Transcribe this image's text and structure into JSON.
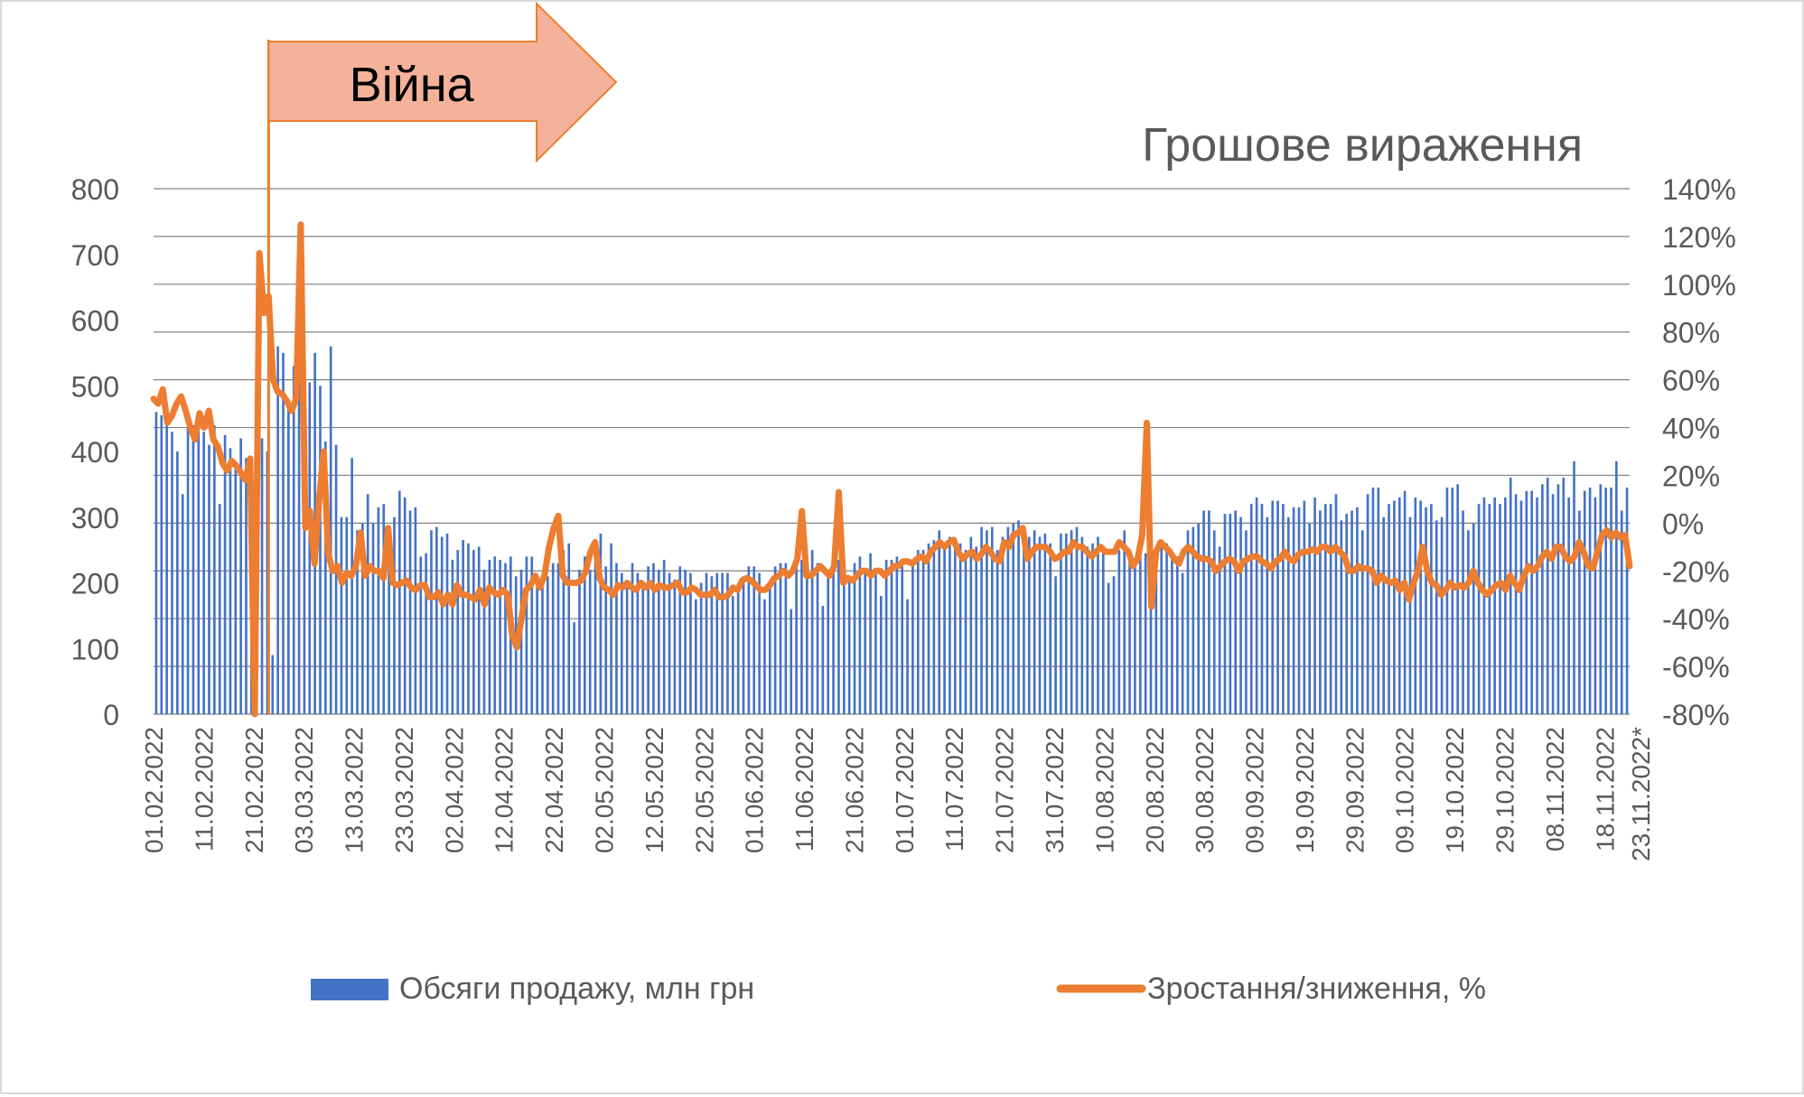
{
  "chart_data": {
    "type": "bar+line",
    "title": "Грошове вираження",
    "annotation": {
      "label": "Війна",
      "date": "24.02.2022"
    },
    "y_left": {
      "ylim": [
        0,
        800
      ],
      "ticks": [
        "0",
        "100",
        "200",
        "300",
        "400",
        "500",
        "600",
        "700",
        "800"
      ]
    },
    "y_right": {
      "ylim": [
        -80,
        140
      ],
      "ticks": [
        "-80%",
        "-60%",
        "-40%",
        "-20%",
        "0%",
        "20%",
        "40%",
        "60%",
        "80%",
        "100%",
        "120%",
        "140%"
      ]
    },
    "x": {
      "start": "01.02.2022",
      "end": "23.11.2022",
      "tick_labels": [
        "01.02.2022",
        "11.02.2022",
        "21.02.2022",
        "03.03.2022",
        "13.03.2022",
        "23.03.2022",
        "02.04.2022",
        "12.04.2022",
        "22.04.2022",
        "02.05.2022",
        "12.05.2022",
        "22.05.2022",
        "01.06.2022",
        "11.06.2022",
        "21.06.2022",
        "01.07.2022",
        "11.07.2022",
        "21.07.2022",
        "31.07.2022",
        "10.08.2022",
        "20.08.2022",
        "30.08.2022",
        "09.09.2022",
        "19.09.2022",
        "29.09.2022",
        "09.10.2022",
        "19.10.2022",
        "29.10.2022",
        "08.11.2022",
        "18.11.2022",
        "23.11.2022*"
      ]
    },
    "grid": true,
    "legend_position": "bottom",
    "series": [
      {
        "name": "Обсяги продажу, млн грн",
        "axis": "left",
        "kind": "bar",
        "color": "#4472c4",
        "values": [
          460,
          455,
          470,
          430,
          400,
          335,
          455,
          440,
          460,
          430,
          410,
          440,
          320,
          425,
          405,
          380,
          420,
          390,
          295,
          400,
          420,
          400,
          90,
          560,
          550,
          480,
          530,
          510,
          520,
          505,
          550,
          500,
          415,
          560,
          410,
          300,
          300,
          390,
          280,
          290,
          335,
          290,
          315,
          320,
          275,
          300,
          340,
          330,
          310,
          315,
          240,
          245,
          280,
          285,
          270,
          275,
          235,
          250,
          265,
          260,
          250,
          255,
          220,
          235,
          240,
          235,
          230,
          240,
          210,
          220,
          240,
          240,
          200,
          200,
          210,
          230,
          230,
          250,
          260,
          140,
          220,
          240,
          220,
          250,
          275,
          225,
          260,
          230,
          215,
          200,
          230,
          215,
          200,
          225,
          230,
          220,
          235,
          215,
          205,
          225,
          220,
          215,
          175,
          200,
          215,
          210,
          215,
          215,
          215,
          180,
          185,
          210,
          225,
          225,
          215,
          175,
          195,
          225,
          230,
          230,
          160,
          230,
          235,
          230,
          250,
          230,
          165,
          220,
          240,
          235,
          215,
          205,
          230,
          240,
          220,
          245,
          220,
          180,
          235,
          235,
          240,
          225,
          175,
          235,
          250,
          250,
          260,
          265,
          280,
          255,
          270,
          260,
          260,
          250,
          270,
          255,
          285,
          280,
          285,
          250,
          270,
          285,
          290,
          295,
          255,
          270,
          280,
          270,
          275,
          260,
          210,
          275,
          275,
          280,
          285,
          270,
          255,
          260,
          270,
          250,
          200,
          210,
          250,
          280,
          245,
          230,
          255,
          245,
          195,
          225,
          265,
          260,
          240,
          240,
          215,
          280,
          285,
          290,
          310,
          310,
          280,
          255,
          305,
          305,
          310,
          300,
          280,
          320,
          330,
          320,
          300,
          325,
          325,
          320,
          300,
          315,
          315,
          325,
          290,
          330,
          310,
          320,
          320,
          335,
          295,
          305,
          310,
          315,
          280,
          335,
          345,
          345,
          300,
          320,
          325,
          330,
          340,
          300,
          330,
          325,
          315,
          320,
          295,
          300,
          345,
          345,
          350,
          310,
          280,
          290,
          320,
          330,
          320,
          330,
          320,
          330,
          360,
          335,
          325,
          340,
          340,
          330,
          350,
          360,
          335,
          350,
          360,
          330,
          385,
          310,
          340,
          345,
          330,
          350,
          345,
          345,
          385,
          310,
          345
        ]
      },
      {
        "name": "Зростання/зниження, %",
        "axis": "right",
        "kind": "line",
        "color": "#ed7d31",
        "values": [
          52,
          50,
          56,
          42,
          45,
          50,
          53,
          47,
          40,
          35,
          46,
          40,
          47,
          35,
          32,
          25,
          22,
          26,
          24,
          21,
          18,
          27,
          -80,
          113,
          88,
          95,
          60,
          55,
          54,
          51,
          47,
          52,
          125,
          -2,
          5,
          -17,
          10,
          30,
          -13,
          -20,
          -18,
          -25,
          -21,
          -22,
          -18,
          -4,
          -22,
          -18,
          -20,
          -20,
          -23,
          -2,
          -25,
          -26,
          -25,
          -24,
          -27,
          -28,
          -26,
          -26,
          -31,
          -31,
          -29,
          -34,
          -30,
          -34,
          -26,
          -30,
          -30,
          -31,
          -32,
          -28,
          -34,
          -27,
          -29,
          -30,
          -28,
          -30,
          -47,
          -52,
          -40,
          -28,
          -26,
          -22,
          -27,
          -22,
          -10,
          -2,
          3,
          -22,
          -25,
          -25,
          -25,
          -24,
          -20,
          -12,
          -8,
          -23,
          -27,
          -28,
          -30,
          -26,
          -27,
          -25,
          -27,
          -28,
          -25,
          -27,
          -25,
          -28,
          -26,
          -27,
          -27,
          -26,
          -25,
          -29,
          -29,
          -27,
          -28,
          -30,
          -30,
          -30,
          -28,
          -31,
          -31,
          -30,
          -27,
          -28,
          -24,
          -23,
          -24,
          -26,
          -28,
          -28,
          -26,
          -23,
          -22,
          -20,
          -22,
          -20,
          -15,
          5,
          -22,
          -22,
          -20,
          -18,
          -20,
          -22,
          -18,
          13,
          -25,
          -23,
          -24,
          -22,
          -20,
          -20,
          -22,
          -20,
          -20,
          -22,
          -20,
          -18,
          -18,
          -16,
          -16,
          -17,
          -15,
          -14,
          -16,
          -12,
          -10,
          -8,
          -10,
          -8,
          -7,
          -12,
          -15,
          -13,
          -12,
          -15,
          -13,
          -10,
          -12,
          -15,
          -16,
          -8,
          -10,
          -5,
          -4,
          -2,
          -15,
          -12,
          -10,
          -10,
          -10,
          -12,
          -15,
          -14,
          -12,
          -12,
          -8,
          -10,
          -10,
          -12,
          -14,
          -12,
          -10,
          -12,
          -12,
          -12,
          -8,
          -10,
          -12,
          -18,
          -15,
          -5,
          42,
          -35,
          -12,
          -8,
          -10,
          -12,
          -15,
          -17,
          -12,
          -10,
          -12,
          -14,
          -15,
          -15,
          -16,
          -20,
          -18,
          -16,
          -15,
          -16,
          -20,
          -16,
          -15,
          -14,
          -14,
          -16,
          -17,
          -19,
          -16,
          -15,
          -12,
          -15,
          -16,
          -13,
          -12,
          -12,
          -11,
          -12,
          -10,
          -10,
          -12,
          -10,
          -12,
          -14,
          -20,
          -20,
          -18,
          -19,
          -19,
          -20,
          -25,
          -22,
          -24,
          -25,
          -24,
          -28,
          -25,
          -32,
          -25,
          -20,
          -10,
          -20,
          -25,
          -26,
          -30,
          -28,
          -25,
          -27,
          -26,
          -27,
          -25,
          -20,
          -25,
          -28,
          -30,
          -28,
          -26,
          -25,
          -28,
          -22,
          -25,
          -28,
          -22,
          -18,
          -20,
          -18,
          -14,
          -12,
          -15,
          -10,
          -10,
          -14,
          -16,
          -14,
          -8,
          -12,
          -18,
          -19,
          -12,
          -5,
          -3,
          -6,
          -4,
          -6,
          -5,
          -18
        ]
      }
    ]
  }
}
